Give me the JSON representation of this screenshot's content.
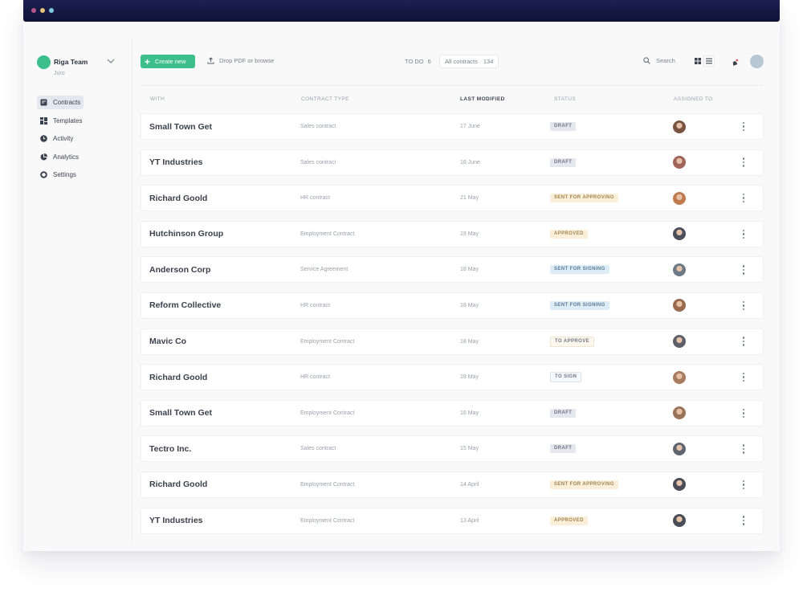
{
  "window": {
    "traffic_lights": [
      "close",
      "minimize",
      "maximize"
    ]
  },
  "team": {
    "name": "Riga Team",
    "subtitle": "Juro",
    "avatar_color": "#3dbf8c"
  },
  "sidebar": {
    "items": [
      {
        "label": "Contracts",
        "icon": "document-icon",
        "active": true
      },
      {
        "label": "Templates",
        "icon": "grid-icon",
        "active": false
      },
      {
        "label": "Activity",
        "icon": "clock-icon",
        "active": false
      },
      {
        "label": "Analytics",
        "icon": "pie-chart-icon",
        "active": false
      },
      {
        "label": "Settings",
        "icon": "gear-icon",
        "active": false
      }
    ]
  },
  "toolbar": {
    "create_label": "Create new",
    "create_icon": "+",
    "drop_label": "Drop PDF or browse",
    "todo_label": "TO DO",
    "todo_count": "6",
    "all_contracts_label": "All contracts",
    "all_contracts_count": "134",
    "search_label": "Search"
  },
  "colors": {
    "accent": "#3dbf8c",
    "titlebar": "#141840",
    "draft_bg": "#e4e7ee",
    "draft_fg": "#6f7685",
    "approving_bg": "#fbefd9",
    "approving_fg": "#a08552",
    "signing_bg": "#dcedf8",
    "signing_fg": "#5c7c93",
    "outline_bg": "#ffffff",
    "outline_fg": "#6f7685"
  },
  "table": {
    "headers": {
      "with": "WITH",
      "contract_type": "CONTRACT TYPE",
      "last_modified": "LAST MODIFIED",
      "status": "STATUS",
      "assigned_to": "ASSIGNED TO"
    },
    "rows": [
      {
        "with": "Small Town Get",
        "type": "Sales contract",
        "date": "17 June",
        "status": "DRAFT",
        "status_kind": "draft",
        "avatar": "#7b5440"
      },
      {
        "with": "YT Industries",
        "type": "Sales contract",
        "date": "16 June",
        "status": "DRAFT",
        "status_kind": "draft",
        "avatar": "#a0635a"
      },
      {
        "with": "Richard Goold",
        "type": "HR contract",
        "date": "21 May",
        "status": "SENT FOR APPROVING",
        "status_kind": "approving",
        "avatar": "#c07a4e"
      },
      {
        "with": "Hutchinson Group",
        "type": "Employment Contract",
        "date": "19 May",
        "status": "APPROVED",
        "status_kind": "approving",
        "avatar": "#4b4f5c"
      },
      {
        "with": "Anderson Corp",
        "type": "Service Agreement",
        "date": "18 May",
        "status": "SENT FOR SIGNING",
        "status_kind": "signing",
        "avatar": "#6b7a86"
      },
      {
        "with": "Reform Collective",
        "type": "HR contract",
        "date": "18 May",
        "status": "SENT FOR SIGNING",
        "status_kind": "signing",
        "avatar": "#9a6a4e"
      },
      {
        "with": "Mavic Co",
        "type": "Employment Contract",
        "date": "18 May",
        "status": "TO APPROVE",
        "status_kind": "outline-warm",
        "avatar": "#5c5f68"
      },
      {
        "with": "Richard Goold",
        "type": "HR contract",
        "date": "18 May",
        "status": "TO SIGN",
        "status_kind": "outline-cool",
        "avatar": "#a77b5e"
      },
      {
        "with": "Small Town Get",
        "type": "Employment Contract",
        "date": "16 May",
        "status": "DRAFT",
        "status_kind": "draft",
        "avatar": "#9a7358"
      },
      {
        "with": "Tectro Inc.",
        "type": "Sales contract",
        "date": "15 May",
        "status": "DRAFT",
        "status_kind": "draft",
        "avatar": "#5f6570"
      },
      {
        "with": "Richard Goold",
        "type": "Employment Contract",
        "date": "14 April",
        "status": "SENT FOR APPROVING",
        "status_kind": "approving",
        "avatar": "#4a4d57"
      },
      {
        "with": "YT Industries",
        "type": "Employment Contract",
        "date": "13 April",
        "status": "APPROVED",
        "status_kind": "approving",
        "avatar": "#4a4d57"
      }
    ]
  }
}
